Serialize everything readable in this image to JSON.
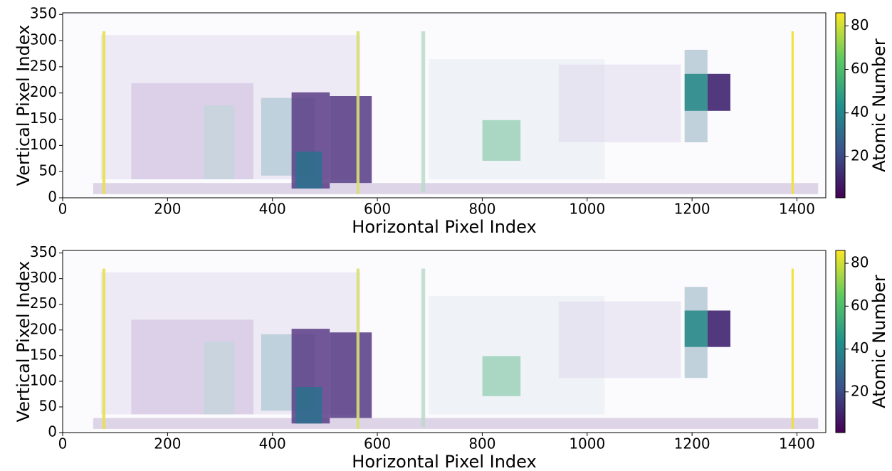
{
  "chart_data": [
    {
      "type": "image",
      "xlabel": "Horizontal Pixel Index",
      "ylabel": "Vertical Pixel Index",
      "xlim": [
        0,
        1455
      ],
      "ylim": [
        0,
        353
      ],
      "xticks": [
        0,
        200,
        400,
        600,
        800,
        1000,
        1200,
        1400
      ],
      "yticks": [
        0,
        50,
        100,
        150,
        200,
        250,
        300,
        350
      ],
      "colorbar": {
        "label": "Atomic Number",
        "lim": [
          1,
          86
        ],
        "ticks": [
          20,
          40,
          60,
          80
        ],
        "colormap": "viridis"
      }
    },
    {
      "type": "image",
      "xlabel": "Horizontal Pixel Index",
      "ylabel": "Vertical Pixel Index",
      "xlim": [
        0,
        1455
      ],
      "ylim": [
        0,
        355
      ],
      "xticks": [
        0,
        200,
        400,
        600,
        800,
        1000,
        1200,
        1400
      ],
      "yticks": [
        0,
        50,
        100,
        150,
        200,
        250,
        300,
        350
      ],
      "colorbar": {
        "label": "Atomic Number",
        "lim": [
          1,
          86
        ],
        "ticks": [
          20,
          40,
          60,
          80
        ],
        "colormap": "viridis"
      }
    }
  ]
}
